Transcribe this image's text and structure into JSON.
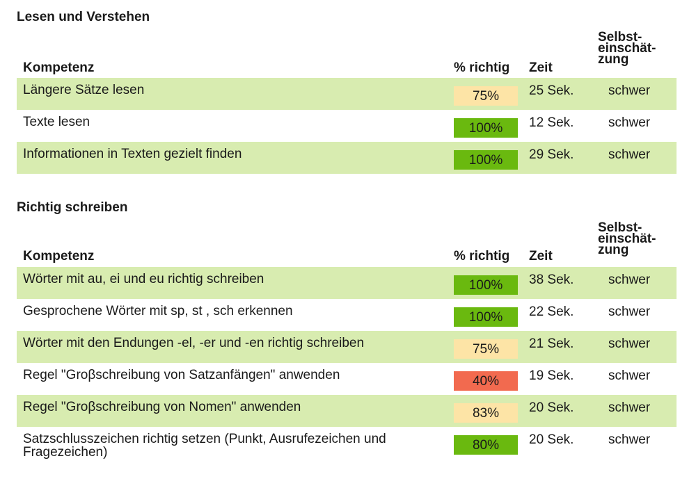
{
  "sections": [
    {
      "title": "Lesen und Verstehen",
      "headers": {
        "kompetenz": "Kompetenz",
        "pct": "% richtig",
        "zeit": "Zeit",
        "selbst_1": "Selbst-",
        "selbst_2": "einschät-",
        "selbst_3": "zung"
      },
      "rows": [
        {
          "label": "Längere Sätze lesen",
          "pct": "75%",
          "time": "25 Sek.",
          "self": "schwer",
          "badge_color": "#fde4a6",
          "shaded": true
        },
        {
          "label": "Texte lesen",
          "pct": "100%",
          "time": "12 Sek.",
          "self": "schwer",
          "badge_color": "#6ab90f",
          "shaded": false
        },
        {
          "label": "Informationen in Texten gezielt finden",
          "pct": "100%",
          "time": "29 Sek.",
          "self": "schwer",
          "badge_color": "#6ab90f",
          "shaded": true
        }
      ]
    },
    {
      "title": "Richtig schreiben",
      "headers": {
        "kompetenz": "Kompetenz",
        "pct": "% richtig",
        "zeit": "Zeit",
        "selbst_1": "Selbst-",
        "selbst_2": "einschät-",
        "selbst_3": "zung"
      },
      "rows": [
        {
          "label": "Wörter mit au, ei und eu richtig schreiben",
          "pct": "100%",
          "time": "38 Sek.",
          "self": "schwer",
          "badge_color": "#6ab90f",
          "shaded": true
        },
        {
          "label": "Gesprochene Wörter mit sp, st , sch erkennen",
          "pct": "100%",
          "time": "22 Sek.",
          "self": "schwer",
          "badge_color": "#6ab90f",
          "shaded": false
        },
        {
          "label": "Wörter mit den Endungen -el, -er und -en richtig schreiben",
          "pct": "75%",
          "time": "21 Sek.",
          "self": "schwer",
          "badge_color": "#fde4a6",
          "shaded": true
        },
        {
          "label": "Regel \"Groβschreibung von Satzanfängen\" anwenden",
          "pct": "40%",
          "time": "19 Sek.",
          "self": "schwer",
          "badge_color": "#f26a4f",
          "shaded": false
        },
        {
          "label": "Regel \"Groβschreibung von Nomen\" anwenden",
          "pct": "83%",
          "time": "20 Sek.",
          "self": "schwer",
          "badge_color": "#fde4a6",
          "shaded": true
        },
        {
          "label": "Satzschlusszeichen richtig setzen (Punkt, Ausrufezeichen und Fragezeichen)",
          "pct": "80%",
          "time": "20 Sek.",
          "self": "schwer",
          "badge_color": "#6ab90f",
          "shaded": false
        }
      ]
    }
  ]
}
